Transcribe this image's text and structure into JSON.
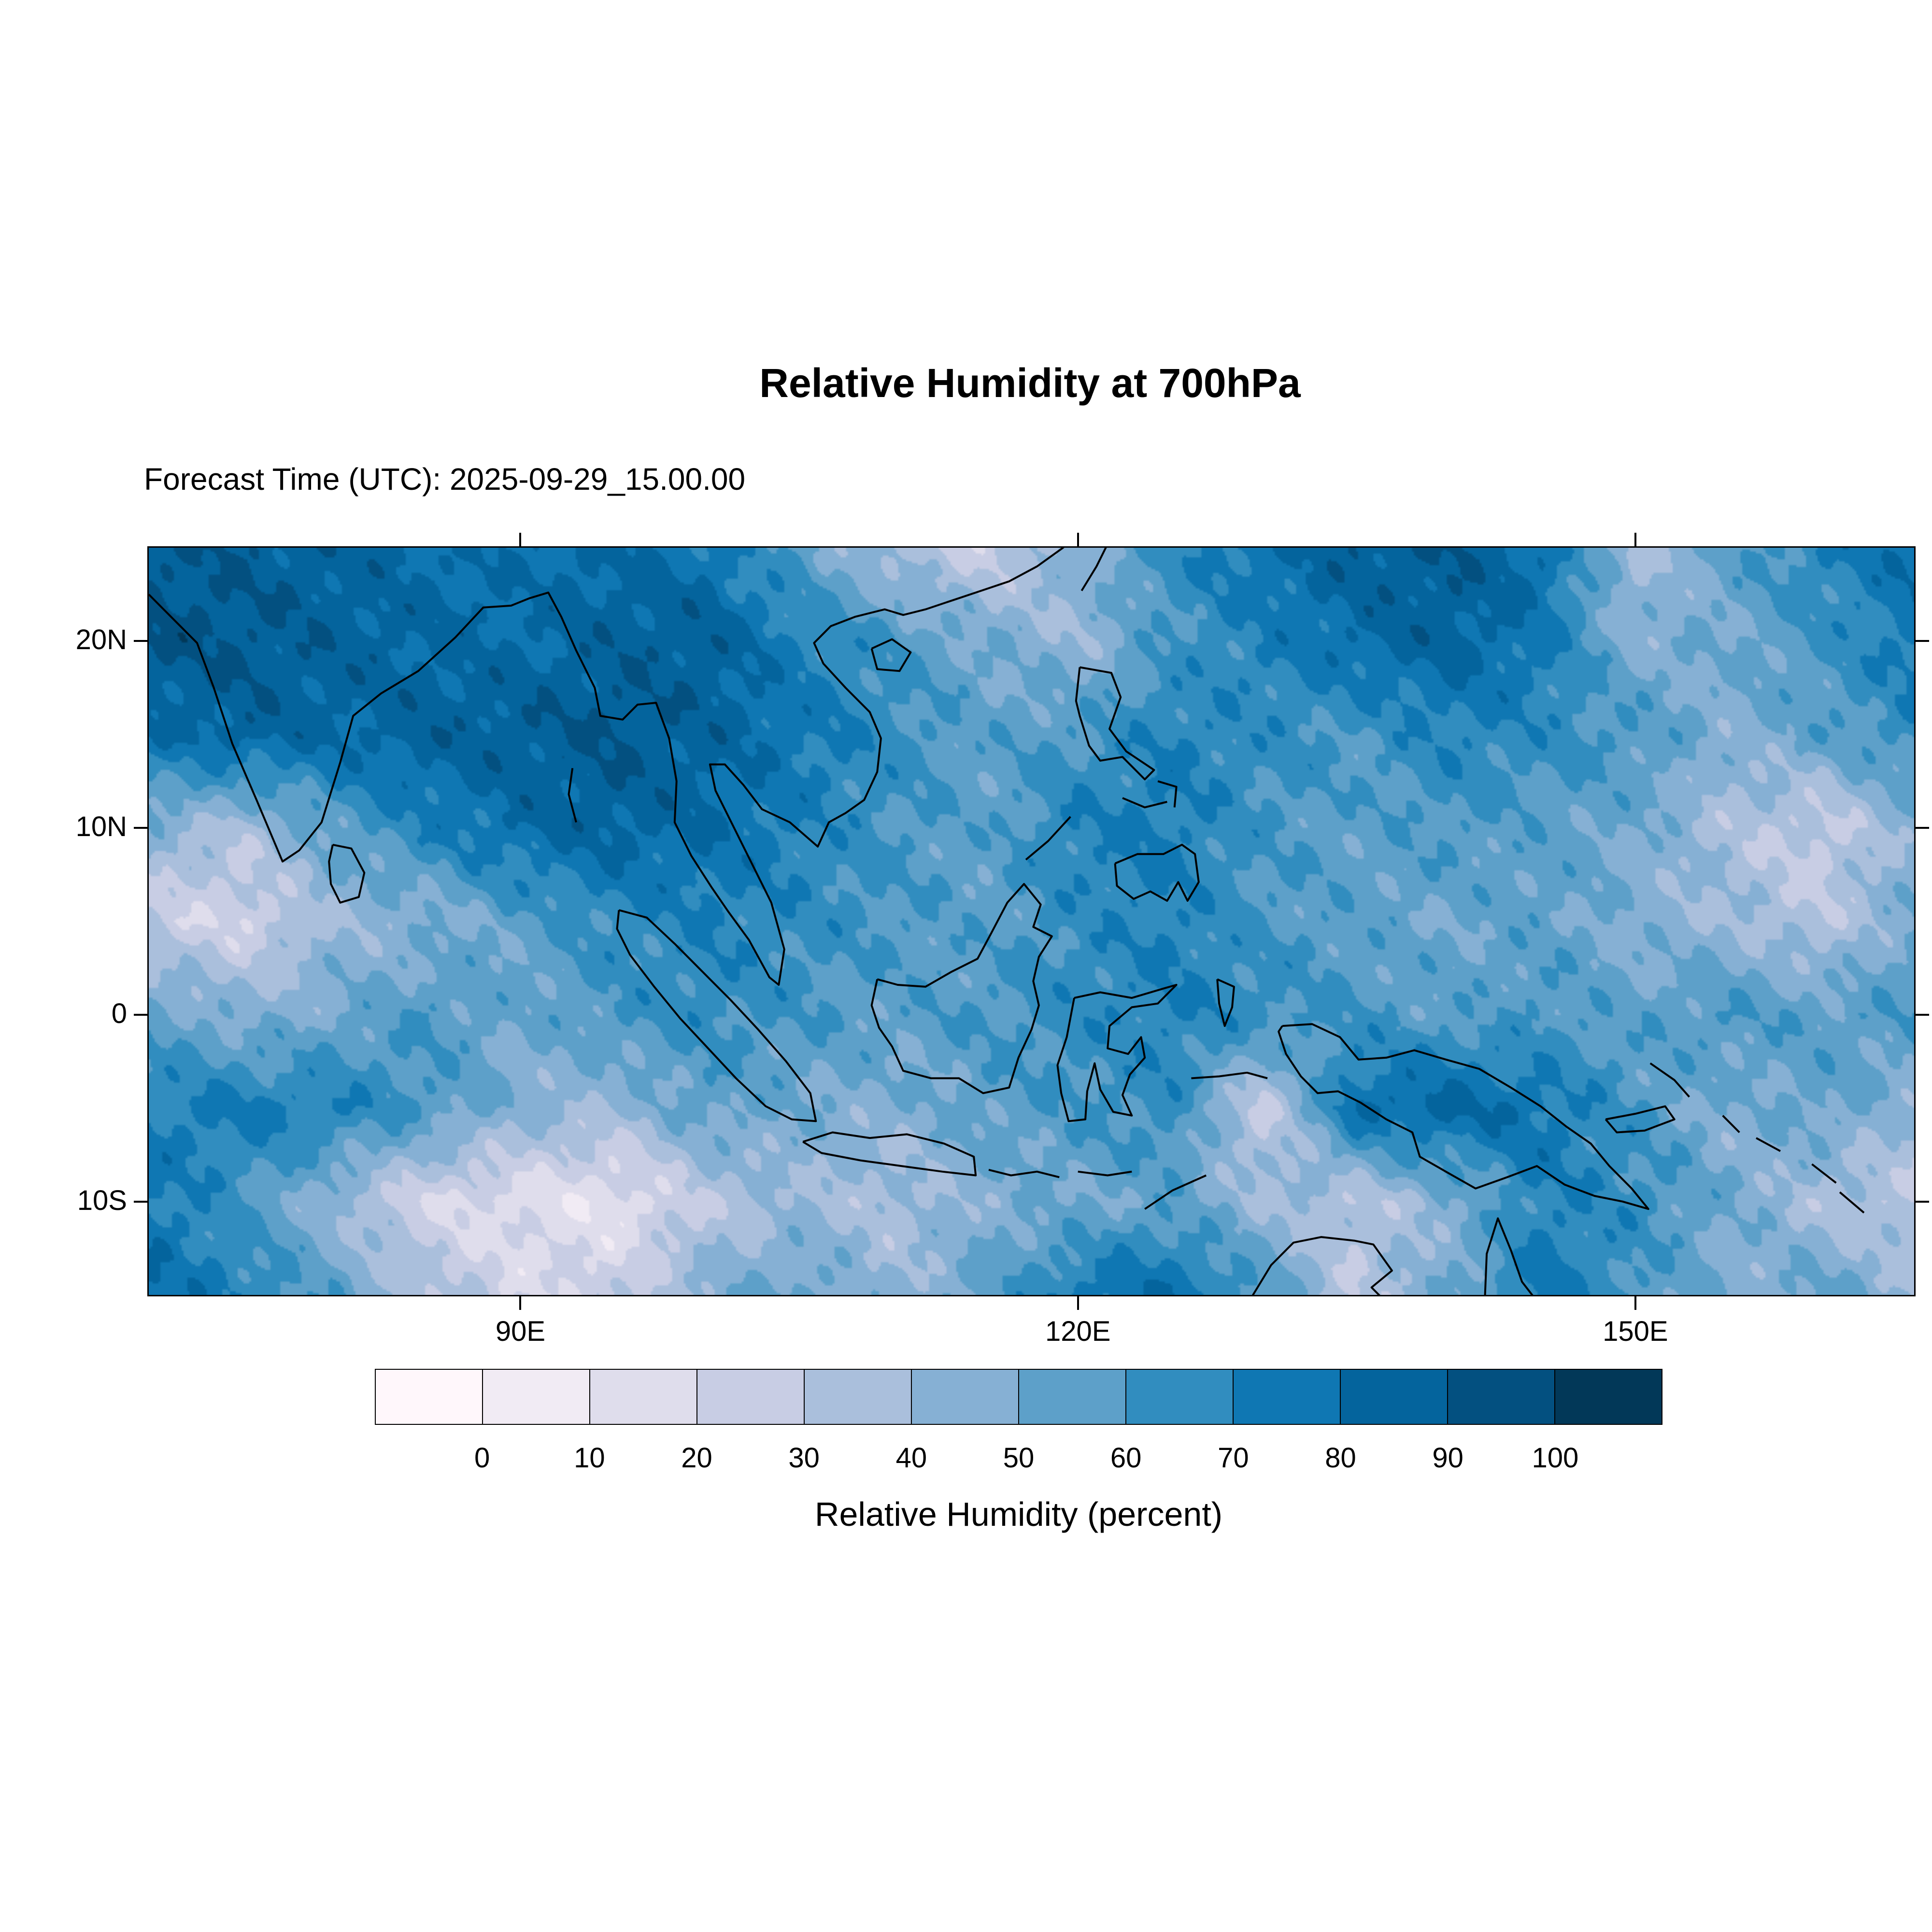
{
  "chart_data": {
    "type": "heatmap",
    "title": "Relative Humidity at 700hPa",
    "subtitle": "Forecast Time (UTC): 2025-09-29_15.00.00",
    "colorbar_label": "Relative Humidity (percent)",
    "lon_range": [
      70,
      165
    ],
    "lat_range": [
      -15,
      25
    ],
    "xticks": [
      {
        "label": "90E",
        "lon": 90
      },
      {
        "label": "120E",
        "lon": 120
      },
      {
        "label": "150E",
        "lon": 150
      }
    ],
    "yticks": [
      {
        "label": "20N",
        "lat": 20
      },
      {
        "label": "10N",
        "lat": 10
      },
      {
        "label": "0",
        "lat": 0
      },
      {
        "label": "10S",
        "lat": -10
      }
    ],
    "colorbar_tick_labels": [
      "0",
      "10",
      "20",
      "30",
      "40",
      "50",
      "60",
      "70",
      "80",
      "90",
      "100"
    ],
    "palette": [
      "#fff7fb",
      "#f1ebf4",
      "#dfddec",
      "#c8cde4",
      "#aabfdc",
      "#86b0d4",
      "#5da0c9",
      "#318dbf",
      "#0f77b3",
      "#04649d",
      "#035080",
      "#023858"
    ],
    "grid": {
      "lons": [
        70,
        75,
        80,
        85,
        90,
        95,
        100,
        105,
        110,
        115,
        120,
        125,
        130,
        135,
        140,
        145,
        150,
        155,
        160,
        165
      ],
      "lats": [
        25,
        20,
        15,
        10,
        5,
        0,
        -5,
        -10,
        -15
      ],
      "values_percent": [
        [
          90,
          88,
          85,
          80,
          78,
          82,
          75,
          55,
          35,
          25,
          45,
          65,
          78,
          88,
          90,
          80,
          35,
          55,
          70,
          80
        ],
        [
          92,
          90,
          86,
          82,
          80,
          86,
          88,
          70,
          60,
          50,
          40,
          60,
          70,
          80,
          85,
          75,
          45,
          50,
          60,
          75
        ],
        [
          78,
          86,
          82,
          85,
          88,
          90,
          85,
          75,
          65,
          55,
          60,
          70,
          65,
          60,
          70,
          65,
          60,
          45,
          55,
          65
        ],
        [
          45,
          35,
          55,
          70,
          80,
          85,
          80,
          70,
          60,
          55,
          70,
          72,
          60,
          55,
          60,
          55,
          50,
          35,
          25,
          45
        ],
        [
          25,
          20,
          40,
          45,
          55,
          65,
          70,
          65,
          60,
          55,
          65,
          70,
          60,
          55,
          50,
          55,
          45,
          40,
          30,
          50
        ],
        [
          55,
          45,
          50,
          60,
          50,
          60,
          65,
          60,
          55,
          60,
          65,
          70,
          65,
          60,
          55,
          60,
          55,
          60,
          55,
          60
        ],
        [
          70,
          75,
          70,
          60,
          45,
          40,
          55,
          50,
          45,
          55,
          60,
          65,
          25,
          80,
          85,
          75,
          60,
          45,
          55,
          40
        ],
        [
          75,
          60,
          40,
          20,
          15,
          10,
          30,
          40,
          35,
          45,
          50,
          55,
          40,
          30,
          45,
          70,
          65,
          50,
          35,
          30
        ],
        [
          80,
          70,
          55,
          35,
          20,
          25,
          45,
          55,
          40,
          55,
          75,
          80,
          60,
          30,
          50,
          75,
          60,
          45,
          55,
          40
        ]
      ]
    },
    "coastlines": [
      [
        [
          70,
          22.5
        ],
        [
          71.5,
          21
        ],
        [
          72.6,
          19.9
        ],
        [
          73.5,
          17.5
        ],
        [
          74.5,
          14.5
        ],
        [
          75.8,
          11.5
        ],
        [
          77.2,
          8.2
        ],
        [
          78.1,
          8.8
        ],
        [
          79.3,
          10.3
        ],
        [
          80.3,
          13.5
        ],
        [
          81,
          16
        ],
        [
          82.5,
          17.2
        ],
        [
          84.5,
          18.4
        ],
        [
          86.5,
          20.2
        ],
        [
          88,
          21.8
        ],
        [
          89.5,
          21.9
        ],
        [
          90.5,
          22.3
        ],
        [
          91.5,
          22.6
        ],
        [
          92.2,
          21.3
        ],
        [
          93,
          19.5
        ],
        [
          94,
          17.5
        ],
        [
          94.3,
          16
        ],
        [
          95.5,
          15.8
        ],
        [
          96.3,
          16.6
        ],
        [
          97.3,
          16.7
        ],
        [
          98,
          14.8
        ],
        [
          98.4,
          12.5
        ],
        [
          98.3,
          10.3
        ],
        [
          99.2,
          8.5
        ],
        [
          100.3,
          6.8
        ],
        [
          101.2,
          5.5
        ],
        [
          102.3,
          4
        ],
        [
          103.4,
          2
        ],
        [
          103.9,
          1.6
        ],
        [
          104.2,
          3.5
        ],
        [
          103.5,
          6
        ],
        [
          102.5,
          8
        ],
        [
          101.5,
          10
        ],
        [
          100.5,
          12
        ],
        [
          100.2,
          13.4
        ],
        [
          101,
          13.4
        ],
        [
          102,
          12.3
        ],
        [
          103,
          11
        ],
        [
          104.5,
          10.3
        ],
        [
          106,
          9
        ],
        [
          106.6,
          10.3
        ],
        [
          107.5,
          10.8
        ],
        [
          108.5,
          11.5
        ],
        [
          109.2,
          13
        ],
        [
          109.4,
          14.8
        ],
        [
          108.8,
          16.2
        ],
        [
          107.5,
          17.5
        ],
        [
          106.3,
          18.8
        ],
        [
          105.8,
          19.9
        ],
        [
          106.7,
          20.8
        ],
        [
          108,
          21.3
        ],
        [
          109.6,
          21.7
        ],
        [
          110.6,
          21.4
        ],
        [
          111.8,
          21.7
        ],
        [
          113.3,
          22.2
        ],
        [
          114.8,
          22.7
        ],
        [
          116.3,
          23.2
        ],
        [
          117.8,
          24
        ],
        [
          119.2,
          25
        ],
        [
          119.8,
          25.6
        ]
      ],
      [
        [
          79.9,
          9.1
        ],
        [
          80.9,
          8.9
        ],
        [
          81.6,
          7.6
        ],
        [
          81.3,
          6.3
        ],
        [
          80.3,
          6
        ],
        [
          79.8,
          7
        ],
        [
          79.7,
          8.2
        ],
        [
          79.9,
          9.1
        ]
      ],
      [
        [
          95.3,
          5.6
        ],
        [
          96.8,
          5.2
        ],
        [
          98.3,
          3.8
        ],
        [
          99.8,
          2.3
        ],
        [
          101.3,
          0.8
        ],
        [
          102.8,
          -0.8
        ],
        [
          104.3,
          -2.5
        ],
        [
          105.6,
          -4.2
        ],
        [
          105.9,
          -5.7
        ],
        [
          104.6,
          -5.6
        ],
        [
          103.2,
          -4.9
        ],
        [
          101.6,
          -3.4
        ],
        [
          100.1,
          -1.8
        ],
        [
          98.6,
          -0.2
        ],
        [
          97.2,
          1.5
        ],
        [
          95.9,
          3.2
        ],
        [
          95.2,
          4.6
        ],
        [
          95.3,
          5.6
        ]
      ],
      [
        [
          105.2,
          -6.8
        ],
        [
          106.8,
          -6.3
        ],
        [
          108.8,
          -6.6
        ],
        [
          110.8,
          -6.4
        ],
        [
          112.8,
          -6.9
        ],
        [
          114.4,
          -7.6
        ],
        [
          114.5,
          -8.6
        ],
        [
          112.7,
          -8.4
        ],
        [
          110.5,
          -8.1
        ],
        [
          108.3,
          -7.8
        ],
        [
          106.2,
          -7.4
        ],
        [
          105.2,
          -6.8
        ]
      ],
      [
        [
          115.2,
          -8.3
        ],
        [
          116.4,
          -8.6
        ],
        [
          117.8,
          -8.4
        ],
        [
          119,
          -8.7
        ]
      ],
      [
        [
          120,
          -8.4
        ],
        [
          121.6,
          -8.6
        ],
        [
          122.9,
          -8.4
        ]
      ],
      [
        [
          123.6,
          -10.4
        ],
        [
          125.1,
          -9.4
        ],
        [
          126.9,
          -8.6
        ]
      ],
      [
        [
          109.2,
          1.9
        ],
        [
          110.3,
          1.6
        ],
        [
          111.8,
          1.5
        ],
        [
          113.2,
          2.3
        ],
        [
          114.6,
          3
        ],
        [
          115.3,
          4.3
        ],
        [
          116.2,
          6
        ],
        [
          117.1,
          7
        ],
        [
          118,
          5.9
        ],
        [
          117.6,
          4.7
        ],
        [
          118.6,
          4.2
        ],
        [
          117.9,
          3.1
        ],
        [
          117.6,
          1.8
        ],
        [
          117.9,
          0.5
        ],
        [
          117.5,
          -0.8
        ],
        [
          116.8,
          -2.3
        ],
        [
          116.3,
          -3.9
        ],
        [
          114.9,
          -4.2
        ],
        [
          113.6,
          -3.4
        ],
        [
          112.1,
          -3.4
        ],
        [
          110.6,
          -3
        ],
        [
          110,
          -1.7
        ],
        [
          109.3,
          -0.7
        ],
        [
          108.9,
          0.5
        ],
        [
          109.2,
          1.9
        ]
      ],
      [
        [
          119.8,
          0.9
        ],
        [
          121.2,
          1.2
        ],
        [
          122.9,
          0.9
        ],
        [
          124.6,
          1.4
        ],
        [
          125.3,
          1.6
        ],
        [
          124.3,
          0.6
        ],
        [
          122.9,
          0.4
        ],
        [
          121.7,
          -0.6
        ],
        [
          121.6,
          -1.8
        ],
        [
          122.7,
          -2.1
        ],
        [
          123.4,
          -1.2
        ],
        [
          123.6,
          -2.3
        ],
        [
          122.8,
          -3.2
        ],
        [
          122.4,
          -4.3
        ],
        [
          122.9,
          -5.4
        ],
        [
          121.9,
          -5.2
        ],
        [
          121.2,
          -4
        ],
        [
          120.9,
          -2.6
        ],
        [
          120.5,
          -4.1
        ],
        [
          120.4,
          -5.6
        ],
        [
          119.5,
          -5.7
        ],
        [
          119.1,
          -4.2
        ],
        [
          118.9,
          -2.7
        ],
        [
          119.4,
          -1.2
        ],
        [
          119.8,
          0.9
        ]
      ],
      [
        [
          120.1,
          18.6
        ],
        [
          121.8,
          18.3
        ],
        [
          122.3,
          17
        ],
        [
          121.7,
          15.3
        ],
        [
          122.6,
          14.1
        ],
        [
          124.1,
          13.1
        ],
        [
          123.6,
          12.6
        ],
        [
          122.4,
          13.8
        ],
        [
          121.2,
          13.6
        ],
        [
          120.6,
          14.4
        ],
        [
          120.1,
          16
        ],
        [
          119.9,
          16.8
        ],
        [
          120.1,
          18.6
        ]
      ],
      [
        [
          122,
          8.1
        ],
        [
          123.2,
          8.6
        ],
        [
          124.6,
          8.6
        ],
        [
          125.6,
          9.1
        ],
        [
          126.3,
          8.6
        ],
        [
          126.5,
          7.1
        ],
        [
          125.9,
          6.1
        ],
        [
          125.4,
          7.1
        ],
        [
          124.8,
          6.1
        ],
        [
          123.9,
          6.6
        ],
        [
          123,
          6.2
        ],
        [
          122.1,
          6.9
        ],
        [
          122,
          8.1
        ]
      ],
      [
        [
          122.4,
          11.6
        ],
        [
          123.6,
          11.1
        ],
        [
          124.8,
          11.4
        ]
      ],
      [
        [
          117.2,
          8.3
        ],
        [
          118.4,
          9.3
        ],
        [
          119.6,
          10.6
        ]
      ],
      [
        [
          124.3,
          12.5
        ],
        [
          125.3,
          12.2
        ],
        [
          125.2,
          11.1
        ]
      ],
      [
        [
          131,
          -0.6
        ],
        [
          132.6,
          -0.5
        ],
        [
          134.1,
          -1.2
        ],
        [
          135.1,
          -2.4
        ],
        [
          136.6,
          -2.3
        ],
        [
          138.1,
          -1.9
        ],
        [
          139.8,
          -2.4
        ],
        [
          141.6,
          -2.9
        ],
        [
          143.3,
          -3.9
        ],
        [
          144.9,
          -4.9
        ],
        [
          146.3,
          -6
        ],
        [
          147.6,
          -6.9
        ],
        [
          148.6,
          -8.1
        ],
        [
          149.8,
          -9.3
        ],
        [
          150.7,
          -10.4
        ],
        [
          149.3,
          -10
        ],
        [
          147.8,
          -9.7
        ],
        [
          146.2,
          -9.1
        ],
        [
          144.7,
          -8.1
        ],
        [
          143.1,
          -8.7
        ],
        [
          141.4,
          -9.3
        ],
        [
          139.8,
          -8.4
        ],
        [
          138.4,
          -7.6
        ],
        [
          138,
          -6.3
        ],
        [
          136.6,
          -5.6
        ],
        [
          135.2,
          -4.7
        ],
        [
          134,
          -4.1
        ],
        [
          132.9,
          -4.2
        ],
        [
          132,
          -3.3
        ],
        [
          131.2,
          -2.1
        ],
        [
          130.8,
          -0.9
        ],
        [
          131,
          -0.6
        ]
      ],
      [
        [
          127.5,
          1.9
        ],
        [
          128.4,
          1.5
        ],
        [
          128.3,
          0.4
        ],
        [
          127.9,
          -0.6
        ],
        [
          127.6,
          0.6
        ],
        [
          127.5,
          1.9
        ]
      ],
      [
        [
          126.1,
          -3.4
        ],
        [
          127.6,
          -3.3
        ],
        [
          129.1,
          -3.1
        ],
        [
          130.2,
          -3.4
        ]
      ],
      [
        [
          129.3,
          -15.2
        ],
        [
          130.4,
          -13.4
        ],
        [
          131.6,
          -12.2
        ],
        [
          133.1,
          -11.9
        ],
        [
          134.9,
          -12.1
        ],
        [
          135.9,
          -12.3
        ],
        [
          136.9,
          -13.7
        ],
        [
          135.8,
          -14.6
        ],
        [
          136.4,
          -15.2
        ]
      ],
      [
        [
          141.9,
          -15.2
        ],
        [
          142,
          -12.8
        ],
        [
          142.6,
          -10.9
        ],
        [
          143.3,
          -12.6
        ],
        [
          143.9,
          -14.3
        ],
        [
          144.6,
          -15.2
        ]
      ],
      [
        [
          108.9,
          19.6
        ],
        [
          110,
          20.1
        ],
        [
          111,
          19.4
        ],
        [
          110.4,
          18.4
        ],
        [
          109.2,
          18.5
        ],
        [
          108.9,
          19.6
        ]
      ],
      [
        [
          120.2,
          22.7
        ],
        [
          121,
          24
        ],
        [
          121.6,
          25.2
        ]
      ],
      [
        [
          92.8,
          13.2
        ],
        [
          92.6,
          11.8
        ],
        [
          93,
          10.3
        ]
      ],
      [
        [
          148.4,
          -5.6
        ],
        [
          150,
          -5.3
        ],
        [
          151.6,
          -4.9
        ],
        [
          152.1,
          -5.6
        ],
        [
          150.5,
          -6.2
        ],
        [
          149,
          -6.3
        ],
        [
          148.4,
          -5.6
        ]
      ],
      [
        [
          150.8,
          -2.6
        ],
        [
          152.1,
          -3.5
        ],
        [
          152.9,
          -4.4
        ]
      ],
      [
        [
          156.5,
          -6.6
        ],
        [
          157.8,
          -7.3
        ]
      ],
      [
        [
          159.5,
          -8
        ],
        [
          160.8,
          -9
        ]
      ],
      [
        [
          161,
          -9.5
        ],
        [
          162.3,
          -10.6
        ]
      ],
      [
        [
          154.7,
          -5.4
        ],
        [
          155.6,
          -6.3
        ]
      ]
    ]
  }
}
